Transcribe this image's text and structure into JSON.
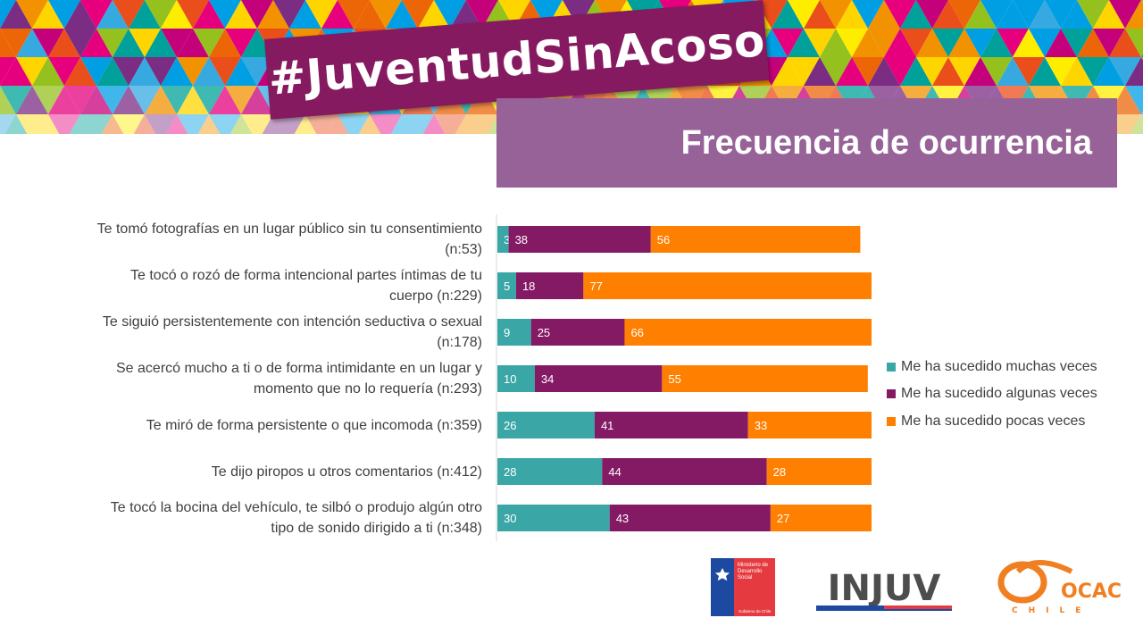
{
  "header": {
    "hashtag": "#JuventudSinAcoso",
    "subtitle": "Frecuencia de ocurrencia"
  },
  "colors": {
    "accent_purple": "#851a60",
    "subtitle_bg": "#966298",
    "teal": "#3aa6a6",
    "purple": "#841a64",
    "orange": "#ff8000"
  },
  "chart_data": {
    "type": "bar",
    "orientation": "horizontal",
    "stacked": true,
    "categories": [
      "Te tomó fotografías en un lugar público sin tu consentimiento (n:53)",
      "Te tocó o rozó de forma intencional partes íntimas de tu cuerpo (n:229)",
      "Te siguió persistentemente con intención seductiva o sexual (n:178)",
      "Se acercó mucho a ti o de forma intimidante en un lugar y momento que no lo requería (n:293)",
      "Te miró de forma persistente o que incomoda (n:359)",
      "Te dijo piropos u otros comentarios (n:412)",
      "Te tocó la bocina del vehículo, te silbó o produjo algún otro tipo de sonido dirigido a ti (n:348)"
    ],
    "series": [
      {
        "name": "Me ha sucedido muchas veces",
        "color": "#3aa6a6",
        "values": [
          3,
          5,
          9,
          10,
          26,
          28,
          30
        ]
      },
      {
        "name": "Me ha sucedido algunas veces",
        "color": "#841a64",
        "values": [
          38,
          18,
          25,
          34,
          41,
          44,
          43
        ]
      },
      {
        "name": "Me ha sucedido pocas veces",
        "color": "#ff8000",
        "values": [
          56,
          77,
          66,
          55,
          33,
          28,
          27
        ]
      }
    ],
    "xlim": [
      0,
      100
    ],
    "legend_position": "right",
    "grid": false
  },
  "footer": {
    "logos": {
      "ministerio": {
        "lines": [
          "Ministerio de",
          "Desarrollo",
          "Social"
        ],
        "footer": "Gobierno de Chile"
      },
      "injuv": "INJUV",
      "ocac": {
        "name": "OCAC",
        "country": "CHILE"
      }
    }
  }
}
